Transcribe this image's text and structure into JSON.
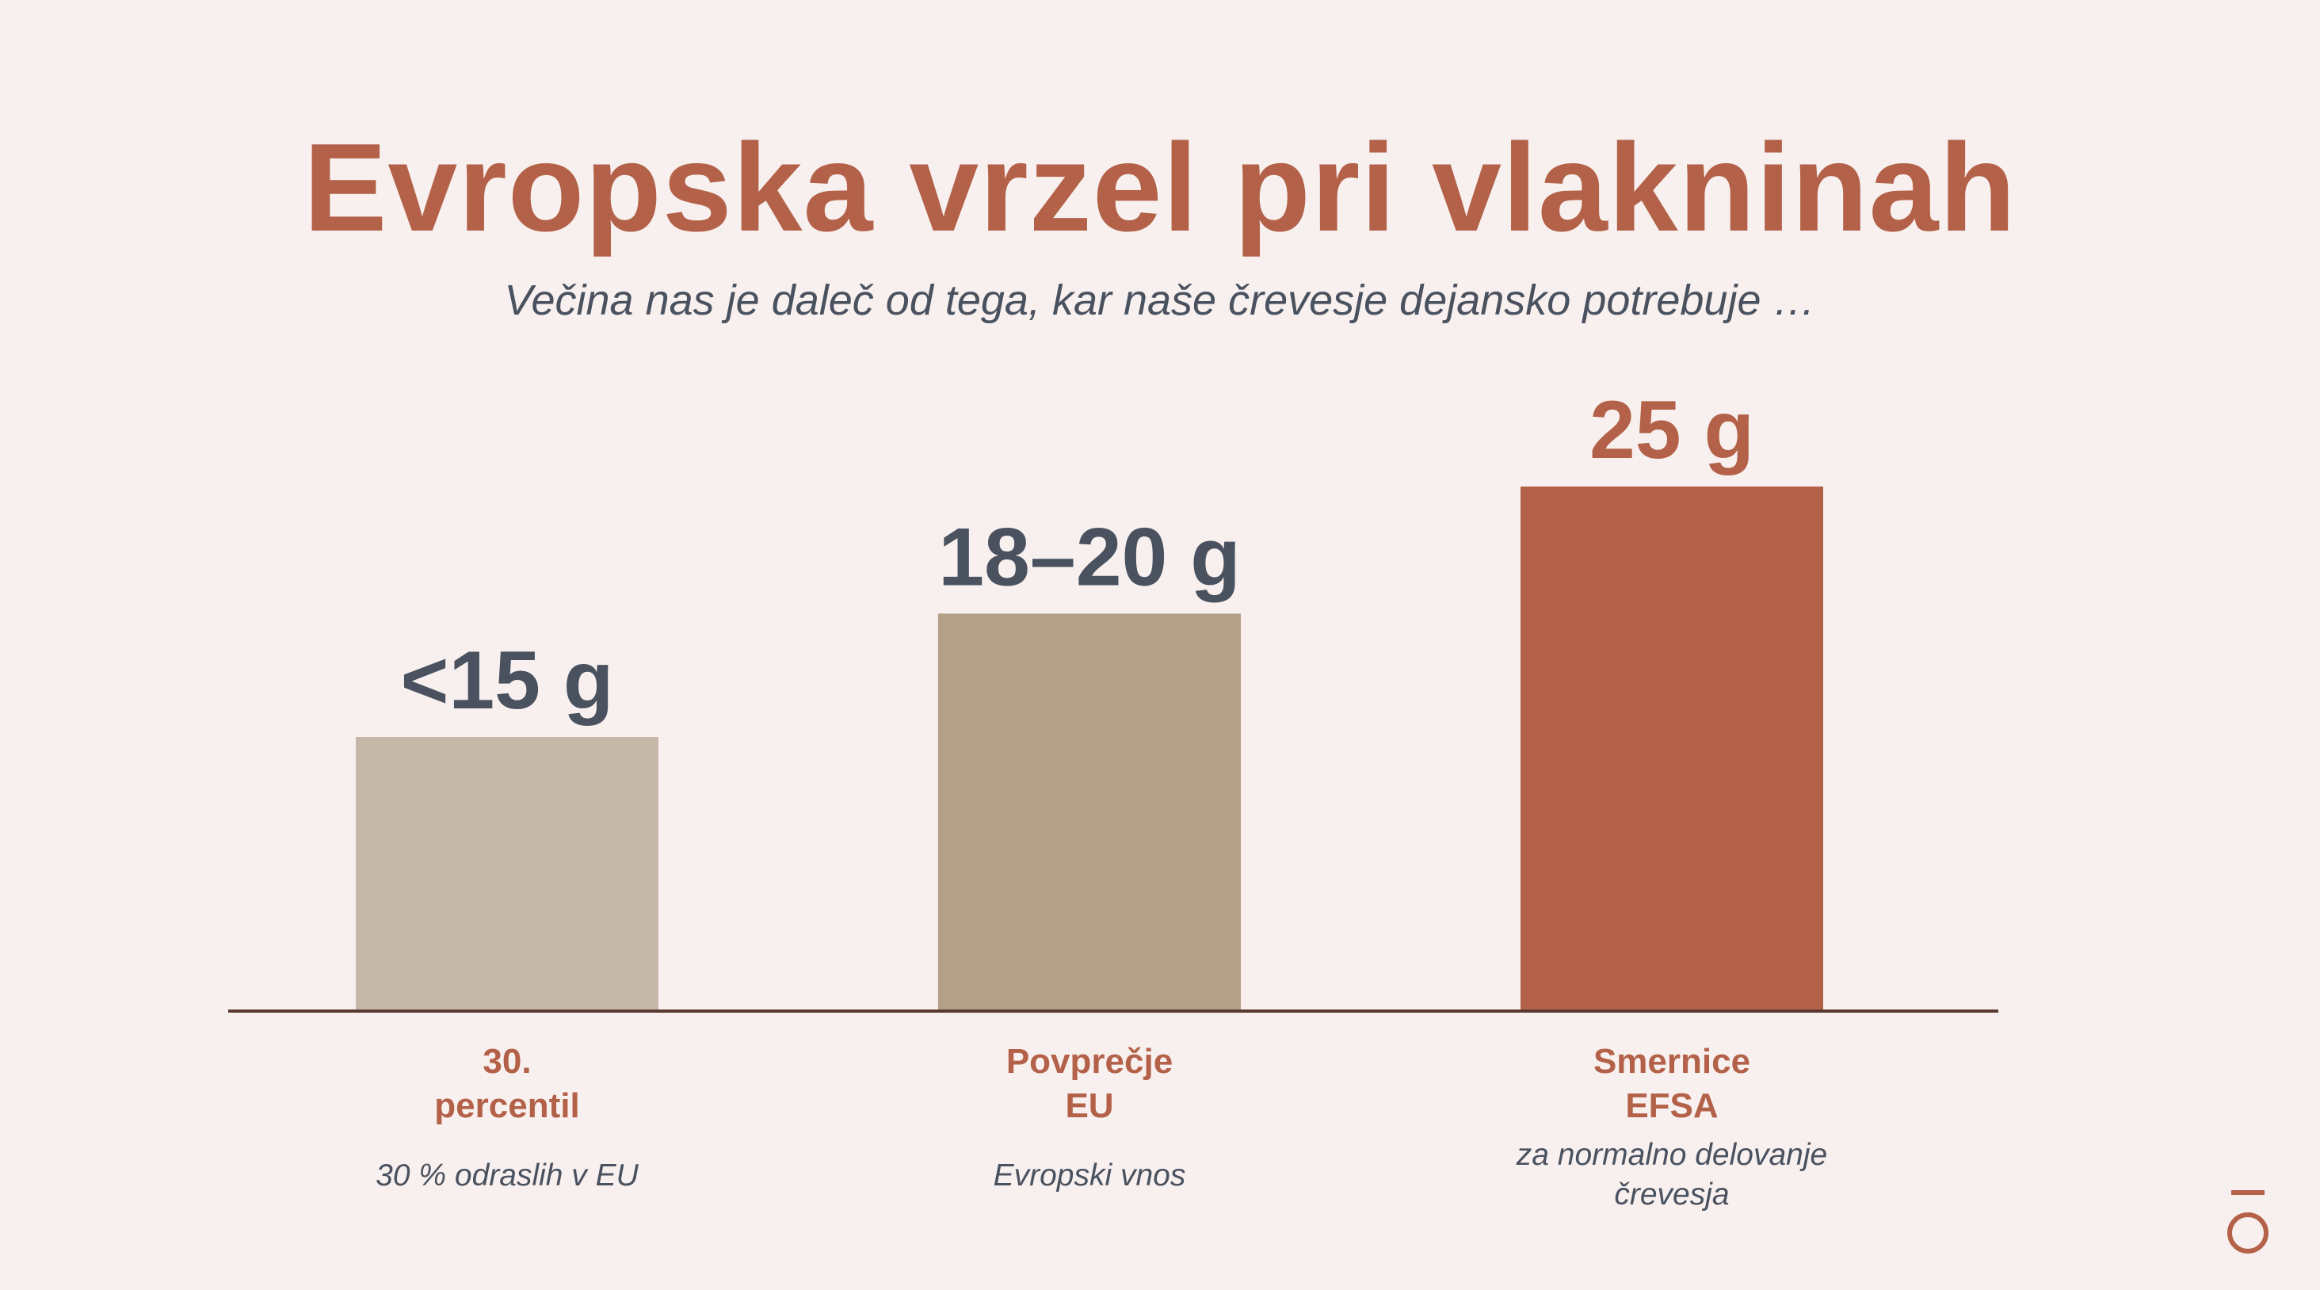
{
  "title": "Evropska vrzel pri vlakninah",
  "subtitle": "Večina nas je daleč od tega, kar naše črevesje dejansko potrebuje …",
  "logo_icon": "doterra-drop-logo",
  "colors": {
    "accent": "#b36148",
    "text_dark": "#4a5260",
    "axis": "#5a3a30",
    "background": "#f8f0ee"
  },
  "chart_data": {
    "type": "bar",
    "title": "Evropska vrzel pri vlakninah",
    "xlabel": "",
    "ylabel": "",
    "unit": "g",
    "ylim": [
      0,
      25
    ],
    "grid": false,
    "categories": [
      {
        "label_lines": [
          "30.",
          "percentil"
        ],
        "sub_lines": [
          "30 % odraslih v EU"
        ],
        "value": 15,
        "value_label": "<15 g",
        "color": "#c6b8a9",
        "value_color": "#4a5260"
      },
      {
        "label_lines": [
          "Povprečje",
          "EU"
        ],
        "sub_lines": [
          "Evropski vnos"
        ],
        "value": 19,
        "value_label": "18–20 g",
        "color": "#b49f87",
        "value_color": "#4a5260"
      },
      {
        "label_lines": [
          "Smernice",
          "EFSA"
        ],
        "sub_lines": [
          "za normalno delovanje",
          "črevesja"
        ],
        "value": 25,
        "value_label": "25 g",
        "color": "#b36148",
        "value_color": "#b36148"
      }
    ]
  }
}
